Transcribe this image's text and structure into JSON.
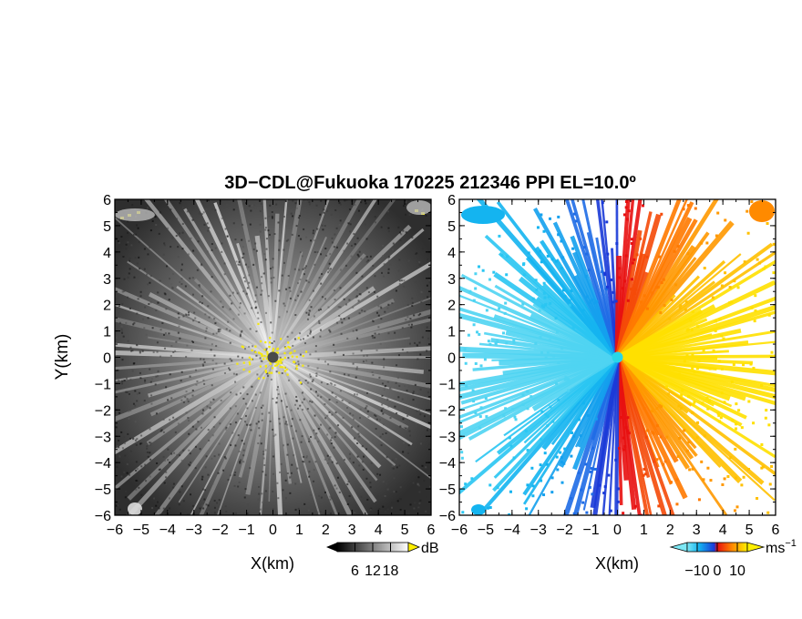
{
  "title": "3D−CDL@Fukuoka 170225 212346 PPI EL=10.0º",
  "chart_data": [
    {
      "type": "heatmap",
      "panel": "reflectivity",
      "xlabel": "X(km)",
      "ylabel": "Y(km)",
      "xlim": [
        -6,
        6
      ],
      "ylim": [
        -6,
        6
      ],
      "xticks": [
        "−6",
        "−5",
        "−4",
        "−3",
        "−2",
        "−1",
        "0",
        "1",
        "2",
        "3",
        "4",
        "5",
        "6"
      ],
      "yticks": [
        "6",
        "5",
        "4",
        "3",
        "2",
        "1",
        "0",
        "−1",
        "−2",
        "−3",
        "−4",
        "−5",
        "−6"
      ],
      "colormap": "grayscale",
      "colorbar": {
        "unit": "dB",
        "ticks": [
          "6",
          "12",
          "18"
        ],
        "range": [
          0,
          24
        ]
      },
      "radar_center": [
        0,
        0
      ],
      "saturated_color": "#f5e80e"
    },
    {
      "type": "heatmap",
      "panel": "doppler_velocity",
      "xlabel": "X(km)",
      "xlim": [
        -6,
        6
      ],
      "ylim": [
        -6,
        6
      ],
      "xticks": [
        "−6",
        "−5",
        "−4",
        "−3",
        "−2",
        "−1",
        "0",
        "1",
        "2",
        "3",
        "4",
        "5",
        "6"
      ],
      "yticks": [
        "6",
        "5",
        "4",
        "3",
        "2",
        "1",
        "0",
        "−1",
        "−2",
        "−3",
        "−4",
        "−5",
        "−6"
      ],
      "colormap": "cyan-blue-red-yellow",
      "colorbar": {
        "unit": "ms",
        "unit_exp": "−1",
        "ticks": [
          "−10",
          "0",
          "10"
        ],
        "range": [
          -15,
          15
        ]
      },
      "velocity_pattern": "negative west of radar, positive east of radar",
      "radar_center": [
        0,
        0
      ],
      "center_color": "#28d7e8"
    }
  ]
}
